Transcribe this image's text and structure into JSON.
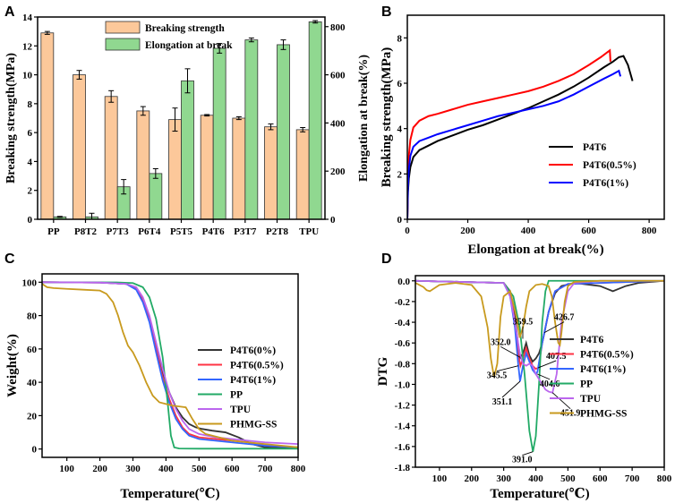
{
  "chart_data": [
    {
      "panel": "A",
      "type": "bar",
      "categories": [
        "PP",
        "P8T2",
        "P7T3",
        "P6T4",
        "P5T5",
        "P4T6",
        "P3T7",
        "P2T8",
        "TPU"
      ],
      "series": [
        {
          "name": "Breaking strength",
          "axis": "left",
          "color": "#fcc89a",
          "values": [
            12.9,
            10.0,
            8.5,
            7.5,
            6.9,
            7.2,
            7.0,
            6.4,
            6.2
          ],
          "errors": [
            0.1,
            0.3,
            0.4,
            0.3,
            0.8,
            0.05,
            0.1,
            0.2,
            0.15
          ]
        },
        {
          "name": "Elongation at break",
          "axis": "right",
          "color": "#90d890",
          "values": [
            10,
            10,
            135,
            190,
            575,
            710,
            745,
            725,
            820
          ],
          "errors": [
            2,
            15,
            30,
            20,
            50,
            20,
            8,
            20,
            5
          ]
        }
      ],
      "ylabel": "Breaking strength(MPa)",
      "ylabel2": "Elongation at break(%)",
      "ylim": [
        0,
        14
      ],
      "ylim2": [
        0,
        840
      ],
      "yticks": [
        0,
        2,
        4,
        6,
        8,
        10,
        12,
        14
      ],
      "yticks2": [
        0,
        200,
        400,
        600,
        800
      ],
      "legend": "top-center"
    },
    {
      "panel": "B",
      "type": "line",
      "series": [
        {
          "name": "P4T6",
          "color": "#000000",
          "x": [
            0,
            2,
            5,
            10,
            20,
            40,
            70,
            100,
            150,
            200,
            250,
            300,
            350,
            400,
            450,
            500,
            550,
            600,
            650,
            680,
            700,
            715,
            730,
            745
          ],
          "y": [
            0,
            1.2,
            1.8,
            2.3,
            2.75,
            3.05,
            3.25,
            3.45,
            3.7,
            3.95,
            4.15,
            4.4,
            4.65,
            4.9,
            5.2,
            5.5,
            5.85,
            6.25,
            6.7,
            6.95,
            7.15,
            7.2,
            6.8,
            6.1
          ]
        },
        {
          "name": "P4T6(0.5%)",
          "color": "#ff0000",
          "x": [
            0,
            2,
            5,
            10,
            20,
            40,
            70,
            100,
            150,
            200,
            250,
            300,
            350,
            400,
            450,
            500,
            550,
            600,
            640,
            660,
            670,
            672
          ],
          "y": [
            0,
            1.8,
            2.8,
            3.5,
            4.05,
            4.35,
            4.55,
            4.65,
            4.85,
            5.05,
            5.2,
            5.35,
            5.5,
            5.65,
            5.85,
            6.1,
            6.4,
            6.8,
            7.15,
            7.35,
            7.45,
            6.95
          ]
        },
        {
          "name": "P4T6(1%)",
          "color": "#0000ff",
          "x": [
            0,
            2,
            5,
            10,
            20,
            40,
            70,
            100,
            150,
            200,
            250,
            300,
            350,
            400,
            450,
            500,
            550,
            600,
            650,
            680,
            700,
            705
          ],
          "y": [
            0,
            1.4,
            2.2,
            2.8,
            3.2,
            3.45,
            3.6,
            3.75,
            3.95,
            4.15,
            4.35,
            4.55,
            4.7,
            4.85,
            5.0,
            5.2,
            5.5,
            5.85,
            6.2,
            6.4,
            6.55,
            6.3
          ]
        }
      ],
      "xlabel": "Elongation at break(%)",
      "ylabel": "Breaking strength(MPa)",
      "xlim": [
        0,
        850
      ],
      "ylim": [
        0,
        9
      ],
      "xticks": [
        0,
        200,
        400,
        600,
        800
      ],
      "yticks": [
        0,
        2,
        4,
        6,
        8
      ],
      "legend": "bottom-right"
    },
    {
      "panel": "C",
      "type": "line",
      "series": [
        {
          "name": "P4T6(0%)",
          "color": "#333333",
          "x": [
            25,
            200,
            280,
            310,
            330,
            350,
            370,
            390,
            410,
            430,
            450,
            470,
            490,
            510,
            540,
            580,
            620,
            660,
            700,
            800
          ],
          "y": [
            100,
            99.8,
            99,
            96,
            90,
            78,
            62,
            46,
            34,
            25,
            19,
            15,
            13,
            12,
            11,
            10,
            7,
            3,
            1,
            0.5
          ]
        },
        {
          "name": "P4T6(0.5%)",
          "color": "#ff3344",
          "x": [
            25,
            200,
            280,
            310,
            330,
            350,
            370,
            390,
            410,
            430,
            450,
            470,
            500,
            550,
            600,
            650,
            700,
            800
          ],
          "y": [
            100,
            99.8,
            99,
            96,
            89,
            77,
            60,
            43,
            30,
            20,
            13,
            9,
            7,
            6,
            5,
            4,
            2,
            1
          ]
        },
        {
          "name": "P4T6(1%)",
          "color": "#3366ff",
          "x": [
            25,
            200,
            280,
            310,
            330,
            350,
            370,
            390,
            410,
            430,
            450,
            470,
            500,
            550,
            600,
            650,
            700,
            800
          ],
          "y": [
            100,
            99.8,
            99,
            95.5,
            88,
            76,
            58,
            41,
            28,
            18,
            12,
            8,
            6,
            5,
            4,
            3,
            2,
            1
          ]
        },
        {
          "name": "PP",
          "color": "#22aa66",
          "x": [
            25,
            250,
            300,
            330,
            350,
            370,
            390,
            405,
            415,
            425,
            440,
            500,
            800
          ],
          "y": [
            100,
            99.9,
            99.5,
            97,
            91,
            78,
            55,
            28,
            8,
            1,
            0.3,
            0.2,
            0.2
          ]
        },
        {
          "name": "TPU",
          "color": "#bb66ee",
          "x": [
            25,
            200,
            280,
            310,
            330,
            350,
            370,
            390,
            410,
            430,
            450,
            470,
            500,
            550,
            600,
            650,
            700,
            800
          ],
          "y": [
            100,
            99.8,
            99,
            97,
            91,
            80,
            64,
            48,
            34,
            24,
            17,
            12,
            9,
            7,
            6,
            5,
            4,
            3
          ]
        },
        {
          "name": "PHMG-SS",
          "color": "#c89a1e",
          "x": [
            25,
            40,
            60,
            100,
            150,
            200,
            220,
            240,
            255,
            270,
            285,
            300,
            320,
            340,
            360,
            380,
            400,
            420,
            440,
            460,
            480,
            500,
            520,
            560,
            600,
            700,
            800
          ],
          "y": [
            99,
            97,
            96.5,
            96,
            95.5,
            95,
            93,
            88,
            80,
            70,
            62,
            58,
            50,
            40,
            32,
            28,
            27,
            26,
            25.5,
            25,
            18,
            12,
            9,
            7,
            5,
            3,
            1
          ]
        }
      ],
      "xlabel": "Temperature(℃)",
      "ylabel": "Weight(%)",
      "xlim": [
        25,
        800
      ],
      "ylim": [
        -5,
        105
      ],
      "xticks": [
        100,
        200,
        300,
        400,
        500,
        600,
        700,
        800
      ],
      "yticks": [
        0,
        20,
        40,
        60,
        80,
        100
      ],
      "legend": "right"
    },
    {
      "panel": "D",
      "type": "line",
      "series": [
        {
          "name": "P4T6",
          "color": "#333333",
          "x": [
            25,
            300,
            320,
            335,
            345,
            352,
            360,
            370,
            380,
            390,
            400,
            410,
            420,
            427,
            440,
            460,
            480,
            520,
            600,
            640,
            680,
            720,
            800
          ],
          "y": [
            0,
            -0.02,
            -0.1,
            -0.35,
            -0.62,
            -0.74,
            -0.7,
            -0.6,
            -0.72,
            -0.78,
            -0.75,
            -0.7,
            -0.6,
            -0.5,
            -0.3,
            -0.12,
            -0.05,
            -0.02,
            -0.05,
            -0.1,
            -0.05,
            -0.02,
            0
          ]
        },
        {
          "name": "P4T6(0.5%)",
          "color": "#ff3344",
          "x": [
            25,
            300,
            320,
            335,
            345,
            352,
            360,
            370,
            380,
            390,
            400,
            408,
            420,
            440,
            460,
            500,
            600,
            800
          ],
          "y": [
            0,
            -0.02,
            -0.12,
            -0.4,
            -0.7,
            -0.82,
            -0.75,
            -0.65,
            -0.75,
            -0.82,
            -0.85,
            -0.84,
            -0.6,
            -0.3,
            -0.1,
            -0.03,
            -0.02,
            0
          ]
        },
        {
          "name": "P4T6(1%)",
          "color": "#3366ff",
          "x": [
            25,
            300,
            320,
            335,
            345,
            351,
            360,
            370,
            380,
            390,
            400,
            405,
            420,
            440,
            460,
            500,
            600,
            800
          ],
          "y": [
            0,
            -0.02,
            -0.15,
            -0.45,
            -0.8,
            -0.97,
            -0.82,
            -0.7,
            -0.78,
            -0.86,
            -0.9,
            -0.88,
            -0.6,
            -0.3,
            -0.1,
            -0.03,
            -0.02,
            0
          ]
        },
        {
          "name": "PP",
          "color": "#22aa66",
          "x": [
            25,
            300,
            330,
            350,
            365,
            380,
            391,
            400,
            410,
            420,
            430,
            440,
            800
          ],
          "y": [
            0,
            -0.02,
            -0.15,
            -0.45,
            -0.9,
            -1.45,
            -1.65,
            -1.5,
            -1.0,
            -0.4,
            -0.1,
            0,
            0
          ]
        },
        {
          "name": "TPU",
          "color": "#bb66ee",
          "x": [
            25,
            300,
            320,
            335,
            350,
            360,
            370,
            380,
            390,
            400,
            410,
            420,
            430,
            440,
            452,
            465,
            480,
            500,
            520,
            600,
            800
          ],
          "y": [
            0,
            -0.02,
            -0.15,
            -0.4,
            -0.7,
            -0.8,
            -0.82,
            -0.8,
            -0.82,
            -0.9,
            -0.95,
            -1.0,
            -1.05,
            -1.07,
            -1.08,
            -0.9,
            -0.4,
            -0.1,
            -0.02,
            0,
            0
          ]
        },
        {
          "name": "PHMG-SS",
          "color": "#c89a1e",
          "x": [
            25,
            50,
            60,
            70,
            80,
            100,
            150,
            200,
            230,
            250,
            260,
            270,
            280,
            290,
            300,
            320,
            340,
            350,
            360,
            370,
            380,
            400,
            420,
            440,
            450,
            460,
            470,
            475,
            480,
            490,
            500,
            520,
            600,
            800
          ],
          "y": [
            -0.02,
            -0.06,
            -0.09,
            -0.1,
            -0.08,
            -0.04,
            -0.02,
            -0.04,
            -0.15,
            -0.45,
            -0.75,
            -0.93,
            -0.8,
            -0.35,
            -0.15,
            -0.1,
            -0.35,
            -0.55,
            -0.45,
            -0.25,
            -0.1,
            -0.04,
            -0.03,
            -0.05,
            -0.15,
            -0.4,
            -0.6,
            -0.62,
            -0.5,
            -0.2,
            -0.05,
            -0.01,
            0,
            0
          ]
        }
      ],
      "annotations": [
        {
          "label": "359.5",
          "x": 359.5,
          "y": -0.56
        },
        {
          "label": "352.0",
          "x": 352.0,
          "y": -0.74
        },
        {
          "label": "345.5",
          "x": 345.5,
          "y": -0.82
        },
        {
          "label": "351.1",
          "x": 351.1,
          "y": -0.97
        },
        {
          "label": "426.7",
          "x": 426.7,
          "y": -0.5
        },
        {
          "label": "407.5",
          "x": 407.5,
          "y": -0.84
        },
        {
          "label": "404.6",
          "x": 404.6,
          "y": -0.9
        },
        {
          "label": "451.9",
          "x": 451.9,
          "y": -1.08
        },
        {
          "label": "391.0",
          "x": 391.0,
          "y": -1.65
        }
      ],
      "xlabel": "Temperature(℃)",
      "ylabel": "DTG",
      "xlim": [
        25,
        800
      ],
      "ylim": [
        -1.8,
        0.05
      ],
      "xticks": [
        100,
        200,
        300,
        400,
        500,
        600,
        700,
        800
      ],
      "yticks": [
        0.0,
        -0.2,
        -0.4,
        -0.6,
        -0.8,
        -1.0,
        -1.2,
        -1.4,
        -1.6,
        -1.8
      ],
      "legend": "right"
    }
  ]
}
